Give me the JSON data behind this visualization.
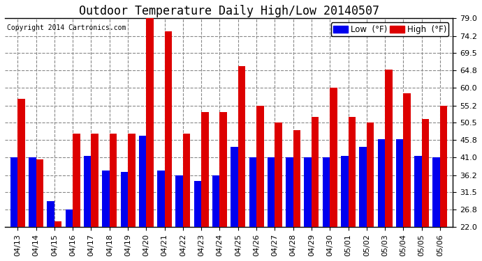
{
  "title": "Outdoor Temperature Daily High/Low 20140507",
  "copyright": "Copyright 2014 Cartronics.com",
  "legend_low": "Low  (°F)",
  "legend_high": "High  (°F)",
  "dates": [
    "04/13",
    "04/14",
    "04/15",
    "04/16",
    "04/17",
    "04/18",
    "04/19",
    "04/20",
    "04/21",
    "04/22",
    "04/23",
    "04/24",
    "04/25",
    "04/26",
    "04/27",
    "04/28",
    "04/29",
    "04/30",
    "05/01",
    "05/02",
    "05/03",
    "05/04",
    "05/05",
    "05/06"
  ],
  "high": [
    57.0,
    40.5,
    23.5,
    47.5,
    47.5,
    47.5,
    47.5,
    79.0,
    75.5,
    47.5,
    53.5,
    53.5,
    66.0,
    55.2,
    50.5,
    48.5,
    52.0,
    60.0,
    52.0,
    50.5,
    65.0,
    58.5,
    51.5,
    55.2
  ],
  "low": [
    41.0,
    41.0,
    29.0,
    26.8,
    41.5,
    37.5,
    37.0,
    47.0,
    37.5,
    36.2,
    34.5,
    36.2,
    44.0,
    41.0,
    41.0,
    41.0,
    41.0,
    41.0,
    41.5,
    44.0,
    46.0,
    46.0,
    41.5,
    41.0
  ],
  "ylim_min": 22.0,
  "ylim_max": 79.0,
  "yticks": [
    22.0,
    26.8,
    31.5,
    36.2,
    41.0,
    45.8,
    50.5,
    55.2,
    60.0,
    64.8,
    69.5,
    74.2,
    79.0
  ],
  "bar_width": 0.4,
  "low_color": "#0000ee",
  "high_color": "#dd0000",
  "bg_color": "#ffffff",
  "grid_color": "#888888",
  "title_fontsize": 12,
  "tick_fontsize": 8,
  "legend_fontsize": 8.5
}
